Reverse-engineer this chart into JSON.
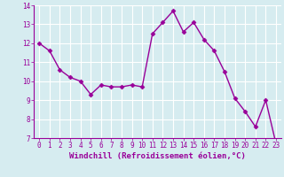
{
  "x": [
    0,
    1,
    2,
    3,
    4,
    5,
    6,
    7,
    8,
    9,
    10,
    11,
    12,
    13,
    14,
    15,
    16,
    17,
    18,
    19,
    20,
    21,
    22,
    23
  ],
  "y": [
    12.0,
    11.6,
    10.6,
    10.2,
    10.0,
    9.3,
    9.8,
    9.7,
    9.7,
    9.8,
    9.7,
    12.5,
    13.1,
    13.7,
    12.6,
    13.1,
    12.2,
    11.6,
    10.5,
    9.1,
    8.4,
    7.6,
    9.0,
    6.7
  ],
  "line_color": "#990099",
  "marker": "D",
  "marker_size": 2.5,
  "line_width": 1,
  "bg_color": "#d6ecf0",
  "grid_color": "#ffffff",
  "xlabel": "Windchill (Refroidissement éolien,°C)",
  "tick_label_color": "#990099",
  "ylim": [
    7,
    14
  ],
  "xlim": [
    -0.5,
    23.5
  ],
  "yticks": [
    7,
    8,
    9,
    10,
    11,
    12,
    13,
    14
  ],
  "xticks": [
    0,
    1,
    2,
    3,
    4,
    5,
    6,
    7,
    8,
    9,
    10,
    11,
    12,
    13,
    14,
    15,
    16,
    17,
    18,
    19,
    20,
    21,
    22,
    23
  ],
  "tick_fontsize": 5.5,
  "xlabel_fontsize": 6.5,
  "spine_color": "#990099",
  "title": ""
}
